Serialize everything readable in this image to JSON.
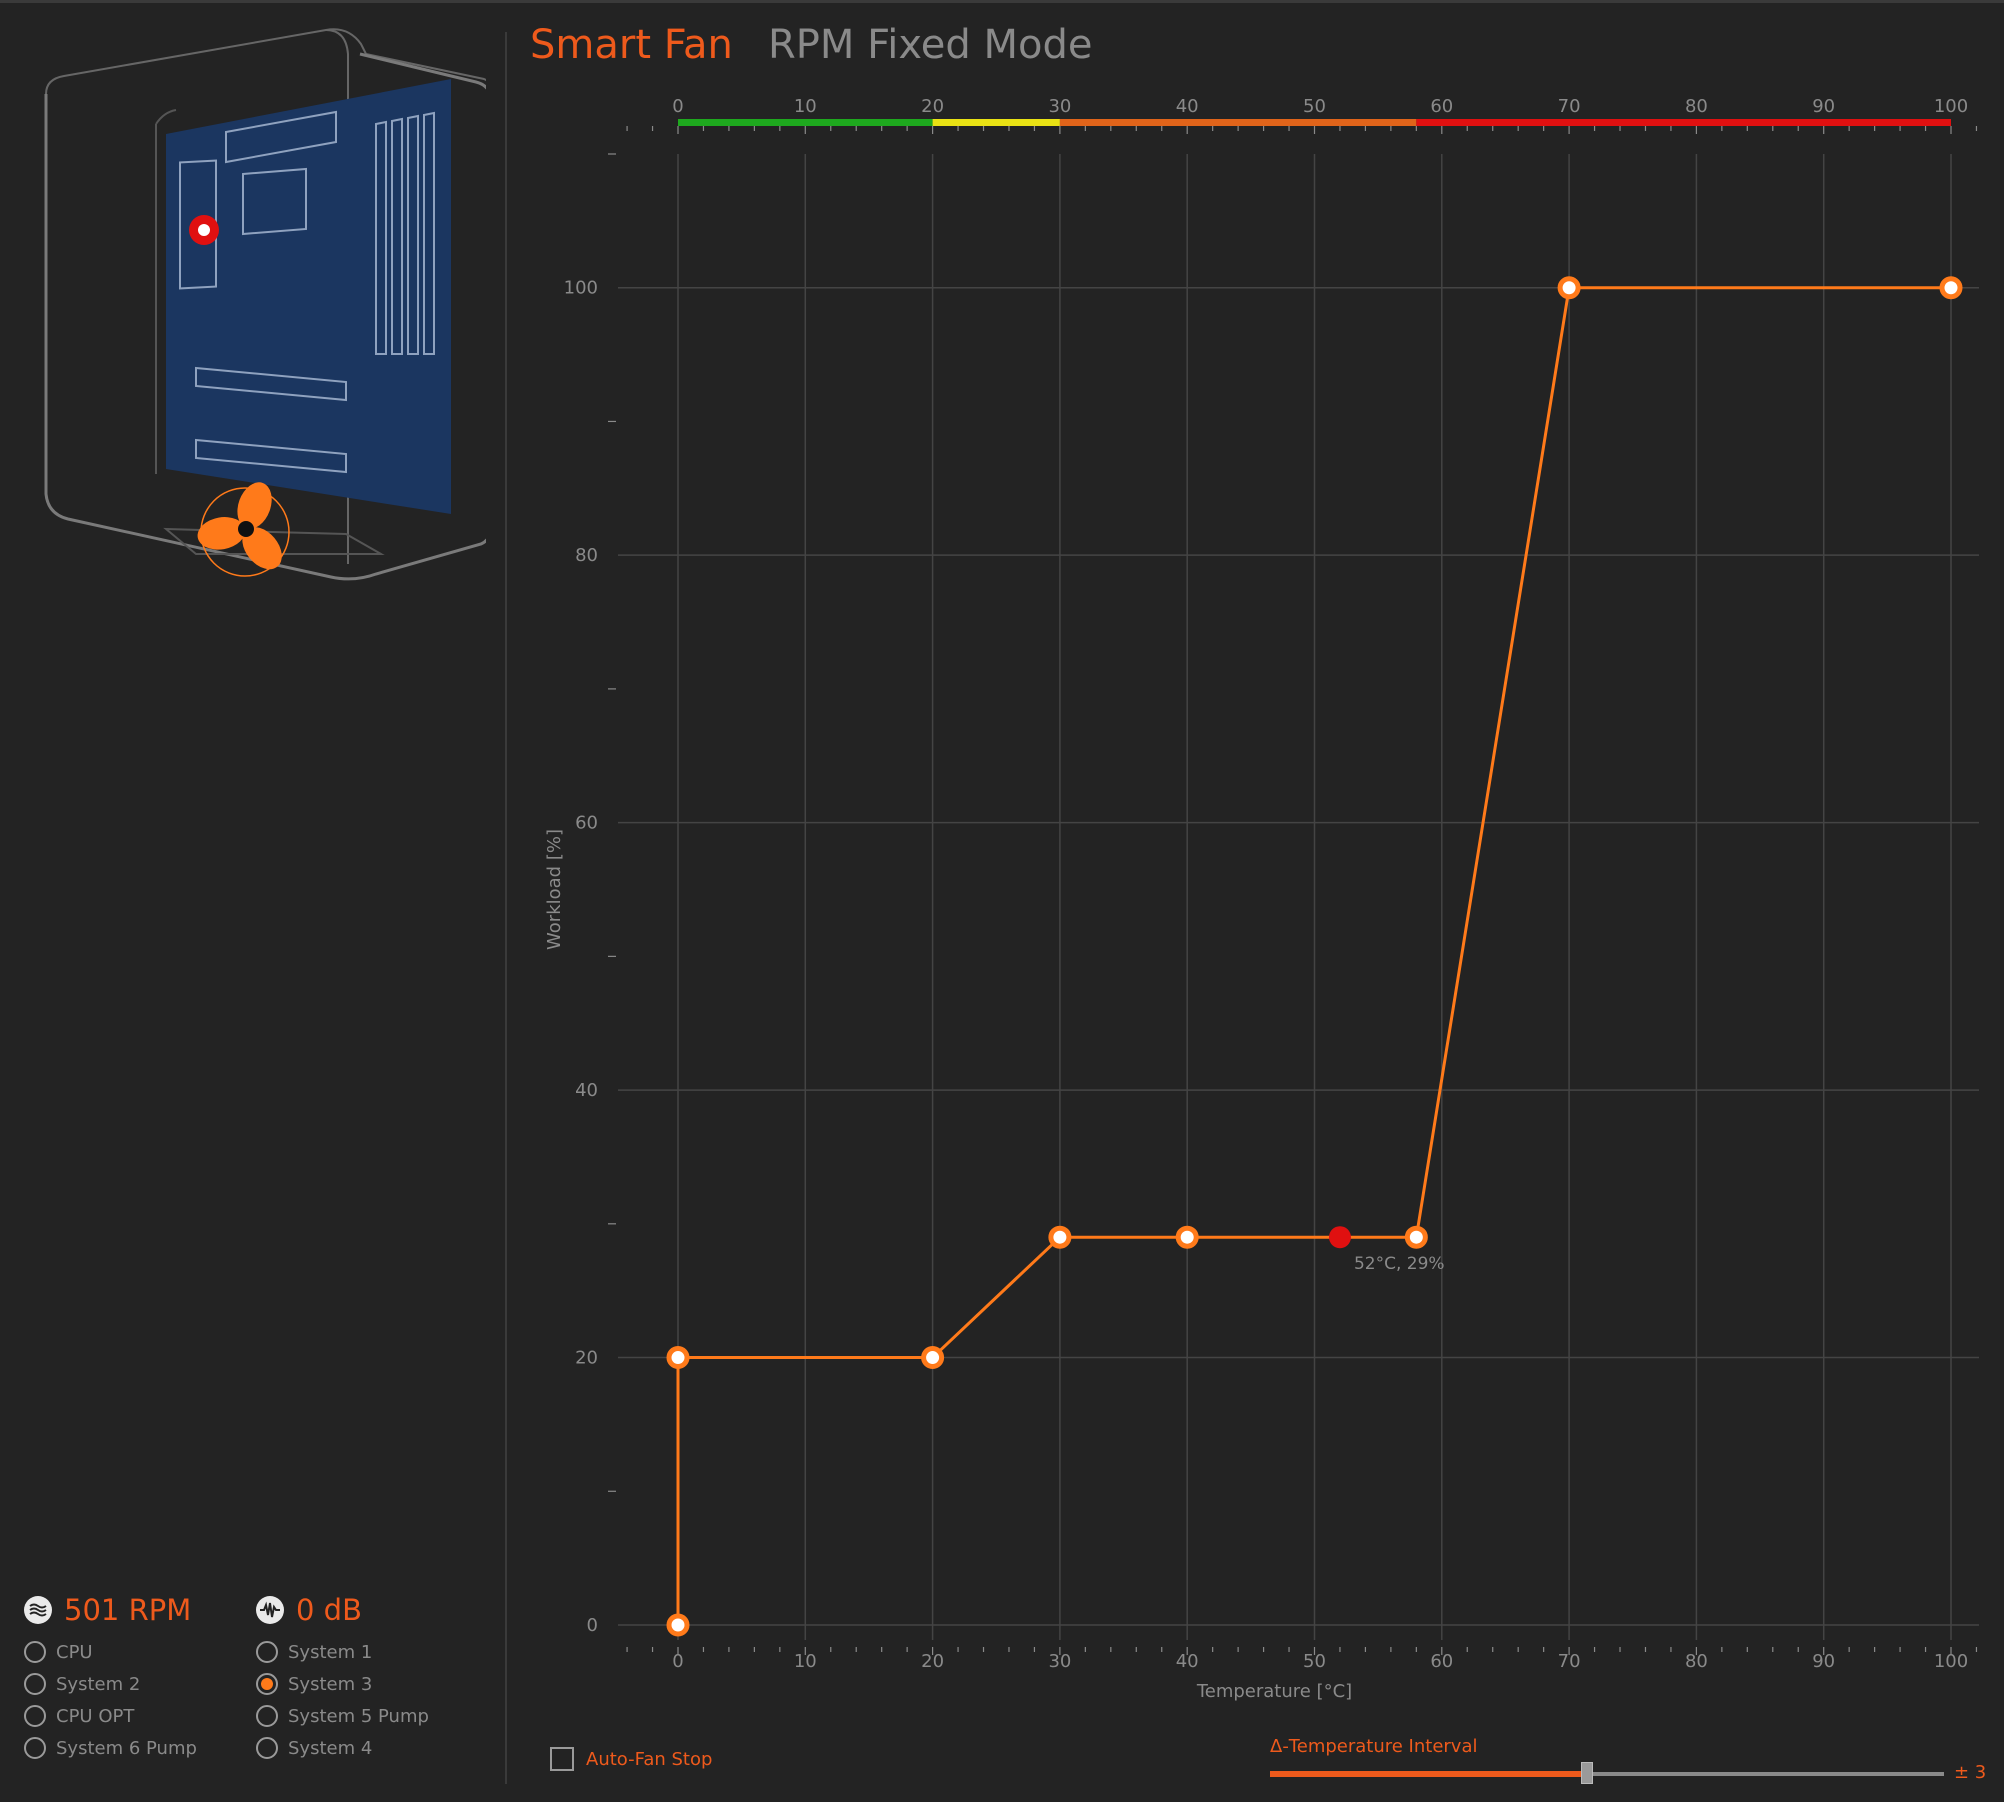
{
  "tabs": {
    "smart_fan": "Smart Fan",
    "rpm_fixed": "RPM Fixed Mode"
  },
  "status": {
    "rpm": "501 RPM",
    "noise": "0 dB"
  },
  "fans_left": [
    {
      "label": "CPU",
      "selected": false
    },
    {
      "label": "System 2",
      "selected": false
    },
    {
      "label": "CPU OPT",
      "selected": false
    },
    {
      "label": "System 6 Pump",
      "selected": false
    }
  ],
  "fans_right": [
    {
      "label": "System 1",
      "selected": false
    },
    {
      "label": "System 3",
      "selected": true
    },
    {
      "label": "System 5 Pump",
      "selected": false
    },
    {
      "label": "System 4",
      "selected": false
    }
  ],
  "auto_fan_stop": {
    "label": "Auto-Fan Stop",
    "checked": false
  },
  "temperature_interval": {
    "label": "Δ-Temperature Interval",
    "value_text": "± 3",
    "fraction": 0.47
  },
  "colors": {
    "accent": "#ee5a1c",
    "curve": "#ff7a1a",
    "current_point": "#e01010",
    "board": "#1b3660",
    "background": "#232323"
  },
  "chart_data": {
    "type": "line",
    "xlabel": "Temperature [°C]",
    "ylabel": "Workload [%]",
    "xlim": [
      0,
      100
    ],
    "ylim": [
      0,
      110
    ],
    "x_ticks": [
      0,
      10,
      20,
      30,
      40,
      50,
      60,
      70,
      80,
      90,
      100
    ],
    "y_ticks": [
      0,
      20,
      40,
      60,
      80,
      100
    ],
    "grid": true,
    "series": [
      {
        "points": [
          {
            "x": 0,
            "y": 0
          },
          {
            "x": 0,
            "y": 20
          },
          {
            "x": 20,
            "y": 20
          },
          {
            "x": 30,
            "y": 29
          },
          {
            "x": 40,
            "y": 29
          },
          {
            "x": 58,
            "y": 29
          },
          {
            "x": 70,
            "y": 100
          },
          {
            "x": 100,
            "y": 100
          }
        ]
      }
    ],
    "current_point": {
      "x": 52,
      "y": 29,
      "label": "52°C, 29%"
    },
    "temperature_scale": [
      {
        "from": 0,
        "to": 20,
        "color": "#1ea81e"
      },
      {
        "from": 20,
        "to": 30,
        "color": "#e9e214"
      },
      {
        "from": 30,
        "to": 58,
        "color": "#e0641a"
      },
      {
        "from": 58,
        "to": 100,
        "color": "#e01010"
      }
    ]
  }
}
